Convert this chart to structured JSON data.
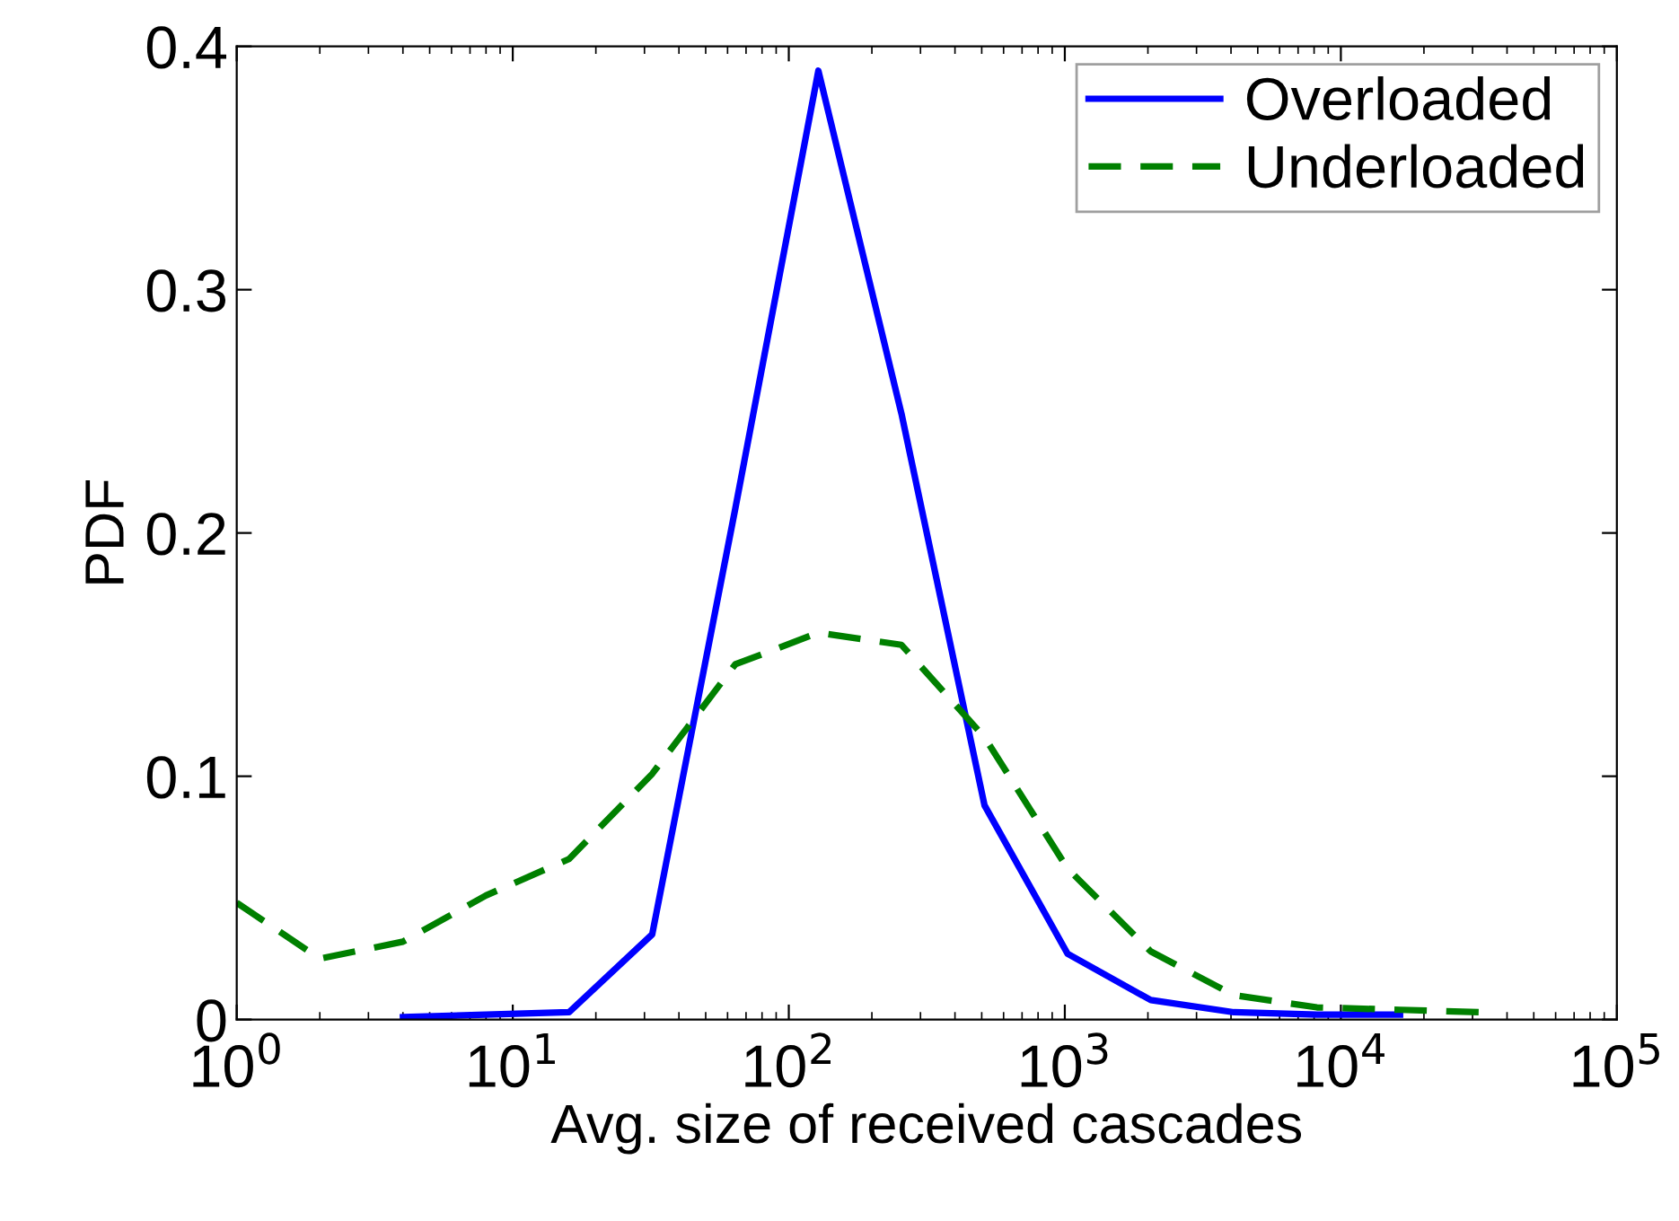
{
  "chart_data": {
    "type": "line",
    "xlabel": "Avg. size of received cascades",
    "ylabel": "PDF",
    "log": "x",
    "xlim": [
      1,
      100000
    ],
    "ylim": [
      0,
      0.4
    ],
    "xticks": [
      {
        "value": 1,
        "label": "10$^{0}$"
      },
      {
        "value": 10,
        "label": "10$^{1}$"
      },
      {
        "value": 100,
        "label": "10$^{2}$"
      },
      {
        "value": 1000,
        "label": "10$^{3}$"
      },
      {
        "value": 10000,
        "label": "10$^{4}$"
      },
      {
        "value": 100000,
        "label": "10$^{5}$"
      }
    ],
    "yticks": [
      0,
      0.1,
      0.2,
      0.3,
      0.4
    ],
    "grid": false,
    "legend": "top right",
    "series": [
      {
        "name": "Overloaded",
        "color": "#0000ff",
        "line_style": "solid",
        "x": [
          4,
          8,
          16,
          32,
          64,
          128,
          256,
          512,
          1024,
          2048,
          4096,
          8192,
          16384
        ],
        "values": [
          0.001,
          0.002,
          0.003,
          0.035,
          0.21,
          0.39,
          0.249,
          0.088,
          0.027,
          0.008,
          0.003,
          0.002,
          0.002
        ]
      },
      {
        "name": "Underloaded",
        "color": "#008000",
        "line_style": "dashed",
        "x": [
          1,
          2,
          4,
          8,
          16,
          32,
          64,
          128,
          256,
          512,
          1024,
          2048,
          4096,
          8192,
          16384,
          32768
        ],
        "values": [
          0.048,
          0.025,
          0.032,
          0.051,
          0.066,
          0.101,
          0.146,
          0.159,
          0.154,
          0.116,
          0.062,
          0.028,
          0.01,
          0.005,
          0.004,
          0.003
        ]
      }
    ]
  }
}
